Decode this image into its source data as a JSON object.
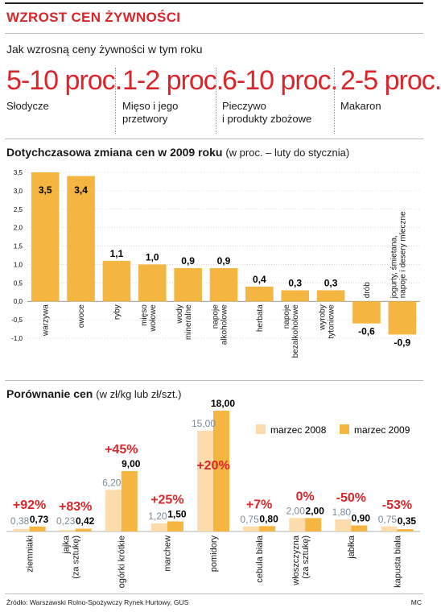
{
  "header": {
    "title": "WZROST CEN ŻYWNOŚCI"
  },
  "forecast": {
    "title": "Jak wzrosną ceny żywności w tym roku",
    "items": [
      {
        "value": "5-10 proc.",
        "label": "Słodycze"
      },
      {
        "value": "1-2 proc.",
        "label": "Mięso i jego\nprzetwory"
      },
      {
        "value": "6-10 proc.",
        "label": "Pieczywo\ni produkty zbożowe"
      },
      {
        "value": "2-5 proc.",
        "label": "Makaron"
      }
    ]
  },
  "chart_data": [
    {
      "type": "bar",
      "title": "Dotychczasowa zmiana cen w 2009 roku",
      "subtitle": "(w proc. – luty do stycznia)",
      "categories": [
        "warzywa",
        "owoce",
        "ryby",
        "mięso\nwołowe",
        "wody\nmineralne",
        "napoje\nalkoholowe",
        "herbata",
        "napoje\nbezalkoholowe",
        "wyroby\ntytoniowe",
        "drób",
        "jogurty, śmietana,\nnapoje i desery mleczne"
      ],
      "values": [
        3.5,
        3.4,
        1.1,
        1.0,
        0.9,
        0.9,
        0.4,
        0.3,
        0.3,
        -0.6,
        -0.9
      ],
      "value_labels": [
        "3,5",
        "3,4",
        "1,1",
        "1,0",
        "0,9",
        "0,9",
        "0,4",
        "0,3",
        "0,3",
        "-0,6",
        "-0,9"
      ],
      "ylim": [
        -1.0,
        3.5
      ],
      "yticks": [
        "-1,0",
        "-0,5",
        "0,0",
        "0,5",
        "1,0",
        "1,5",
        "2,0",
        "2,5",
        "3,0",
        "3,5"
      ],
      "grid": true,
      "color": "#f5b541"
    },
    {
      "type": "bar",
      "title": "Porównanie cen",
      "subtitle": "(w zł/kg lub zł/szt.)",
      "categories": [
        "ziemniaki",
        "jajka\n(za sztukę)",
        "ogórki krótkie",
        "marchew",
        "pomidory",
        "cebula biała",
        "włoszczyzna\n(za sztukę)",
        "jabłka",
        "kapusta biała"
      ],
      "series": [
        {
          "name": "marzec 2008",
          "values": [
            0.38,
            0.23,
            6.2,
            1.2,
            15.0,
            0.75,
            2.0,
            1.8,
            0.75
          ],
          "value_labels": [
            "0,38",
            "0,23",
            "6,20",
            "1,20",
            "15,00",
            "0,75",
            "2,00",
            "1,80",
            "0,75"
          ],
          "color": "#fbdcaa"
        },
        {
          "name": "marzec 2009",
          "values": [
            0.73,
            0.42,
            9.0,
            1.5,
            18.0,
            0.8,
            2.0,
            0.9,
            0.35
          ],
          "value_labels": [
            "0,73",
            "0,42",
            "9,00",
            "1,50",
            "18,00",
            "0,80",
            "2,00",
            "0,90",
            "0,35"
          ],
          "color": "#f5b541"
        }
      ],
      "changes": [
        "+92%",
        "+83%",
        "+45%",
        "+25%",
        "+20%",
        "+7%",
        "0%",
        "-50%",
        "-53%"
      ],
      "ylim": [
        0,
        18
      ],
      "legend": "top-right"
    }
  ],
  "footer": {
    "source": "Źródło: Warszawski Rolno-Spożywczy Rynek Hurtowy, GUS",
    "signature": "MC"
  },
  "colors": {
    "accent": "#d9262a",
    "bar": "#f5b541",
    "bar_light": "#fbdcaa",
    "old_value": "#7a8a99"
  }
}
